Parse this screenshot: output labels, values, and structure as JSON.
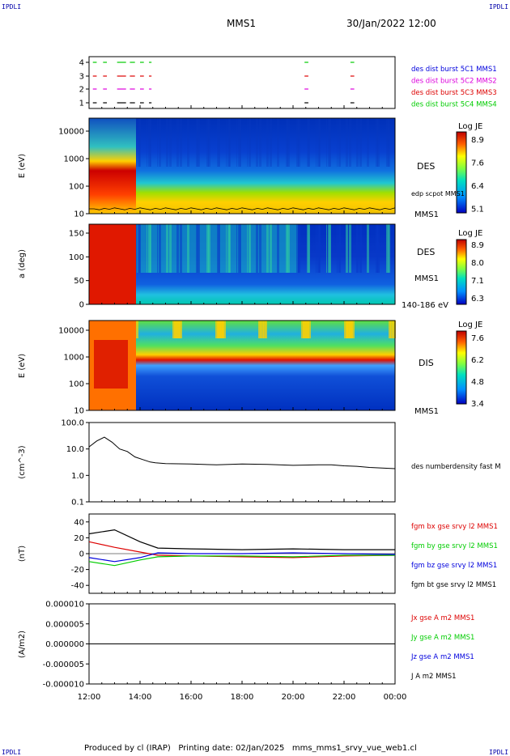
{
  "corners": {
    "tl": "IPDLI",
    "tr": "IPDLI",
    "bl": "IPDLI",
    "br": "IPDLI"
  },
  "header": {
    "spacecraft": "MMS1",
    "datetime": "30/Jan/2022 12:00"
  },
  "footer": {
    "text": "Produced by cl (IRAP)   Printing date: 02/Jan/2025   mms_mms1_srvy_vue_web1.cl"
  },
  "colors": {
    "red": "#dd0000",
    "green": "#00cc00",
    "blue": "#0000dd",
    "magenta": "#dd00dd",
    "black": "#000000"
  },
  "chart_data": [
    {
      "id": "burst",
      "type": "scatter",
      "y_ticks": [
        "1",
        "2",
        "3",
        "4"
      ],
      "labels": [
        {
          "text": "des dist burst 5C1 MMS1",
          "color": "#0000dd"
        },
        {
          "text": "des dist burst 5C2 MMS2",
          "color": "#dd00dd"
        },
        {
          "text": "des dist burst 5C3 MMS3",
          "color": "#dd0000"
        },
        {
          "text": "des dist burst 5C4 MMS4",
          "color": "#00cc00"
        }
      ],
      "intervals_hours": [
        [
          12.15,
          12.3
        ],
        [
          12.55,
          12.7
        ],
        [
          13.1,
          13.45
        ],
        [
          13.6,
          13.8
        ],
        [
          14.0,
          14.15
        ],
        [
          14.35,
          14.45
        ],
        [
          20.45,
          20.6
        ],
        [
          22.25,
          22.4
        ]
      ]
    },
    {
      "id": "des_energy",
      "type": "heatmap",
      "ylabel": "E (eV)",
      "y_ticks": [
        "10",
        "100",
        "1000",
        "10000"
      ],
      "colorbar_title": "Log JE",
      "colorbar_ticks": [
        "8.9",
        "7.6",
        "6.4",
        "5.1"
      ],
      "side_labels": [
        "DES",
        "edp scpot MMS1",
        "MMS1"
      ]
    },
    {
      "id": "des_pitch",
      "type": "heatmap",
      "ylabel": "a (deg)",
      "y_ticks": [
        "0",
        "50",
        "100",
        "150"
      ],
      "colorbar_title": "Log JE",
      "colorbar_ticks": [
        "8.9",
        "8.0",
        "7.1",
        "6.3"
      ],
      "side_labels": [
        "DES",
        "MMS1",
        "140-186 eV"
      ]
    },
    {
      "id": "dis_energy",
      "type": "heatmap",
      "ylabel": "E (eV)",
      "y_ticks": [
        "10",
        "100",
        "1000",
        "10000"
      ],
      "colorbar_title": "Log JE",
      "colorbar_ticks": [
        "7.6",
        "6.2",
        "4.8",
        "3.4"
      ],
      "side_labels": [
        "DIS",
        "MMS1"
      ]
    },
    {
      "id": "density",
      "type": "line",
      "ylabel": "(cm^-3)",
      "y_ticks": [
        "0.1",
        "1.0",
        "10.0",
        "100.0"
      ],
      "ylim": [
        0.1,
        100
      ],
      "log_y": true,
      "series": [
        {
          "name": "des numberdensity fast M",
          "x_hours": [
            12.0,
            12.3,
            12.6,
            12.9,
            13.2,
            13.5,
            13.8,
            14.1,
            14.4,
            14.6,
            14.8,
            15.0,
            16.0,
            17.0,
            17.5,
            18.0,
            19.0,
            20.0,
            21.0,
            21.5,
            22.0,
            22.5,
            23.0,
            23.5,
            24.0
          ],
          "y": [
            12,
            20,
            28,
            18,
            10,
            8,
            5,
            4,
            3.2,
            3.0,
            2.9,
            2.8,
            2.7,
            2.5,
            2.6,
            2.7,
            2.6,
            2.4,
            2.5,
            2.5,
            2.3,
            2.2,
            2.0,
            1.9,
            1.8
          ]
        }
      ]
    },
    {
      "id": "fgm",
      "type": "line",
      "ylabel": "(nT)",
      "y_ticks": [
        "-40",
        "-20",
        "0",
        "20",
        "40"
      ],
      "ylim": [
        -50,
        50
      ],
      "series": [
        {
          "name": "fgm bx gse srvy l2 MMS1",
          "color": "#dd0000",
          "x_hours": [
            12,
            13,
            14,
            14.7,
            16,
            18,
            20,
            22,
            24
          ],
          "y": [
            15,
            8,
            2,
            -2,
            -3,
            -4,
            -5,
            -3,
            -2
          ]
        },
        {
          "name": "fgm by gse srvy l2 MMS1",
          "color": "#00cc00",
          "x_hours": [
            12,
            13,
            14,
            14.7,
            16,
            18,
            20,
            22,
            24
          ],
          "y": [
            -10,
            -15,
            -8,
            -4,
            -3,
            -3,
            -4,
            -2,
            -2
          ]
        },
        {
          "name": "fgm bz gse srvy l2 MMS1",
          "color": "#0000dd",
          "x_hours": [
            12,
            13,
            14,
            14.7,
            16,
            18,
            20,
            22,
            24
          ],
          "y": [
            -5,
            -10,
            -5,
            1,
            0,
            0,
            1,
            0,
            -1
          ]
        },
        {
          "name": "fgm bt gse srvy l2 MMS1",
          "color": "#000000",
          "x_hours": [
            12,
            13,
            14,
            14.7,
            16,
            18,
            20,
            22,
            24
          ],
          "y": [
            25,
            30,
            15,
            7,
            6,
            5,
            6,
            5,
            5
          ]
        }
      ]
    },
    {
      "id": "current",
      "type": "line",
      "ylabel": "(A/m2)",
      "y_ticks": [
        "-0.000010",
        "-0.000005",
        "0.000000",
        "0.000005",
        "0.000010"
      ],
      "ylim": [
        -1e-05,
        1e-05
      ],
      "series": [
        {
          "name": "Jx gse A m2 MMS1",
          "color": "#dd0000"
        },
        {
          "name": "Jy gse A m2 MMS1",
          "color": "#00cc00"
        },
        {
          "name": "Jz gse A m2 MMS1",
          "color": "#0000dd"
        },
        {
          "name": "J A m2 MMS1",
          "color": "#000000"
        }
      ]
    }
  ],
  "x_axis": {
    "ticks": [
      "12:00",
      "14:00",
      "16:00",
      "18:00",
      "20:00",
      "22:00",
      "00:00"
    ],
    "range_hours": [
      12,
      24
    ]
  }
}
